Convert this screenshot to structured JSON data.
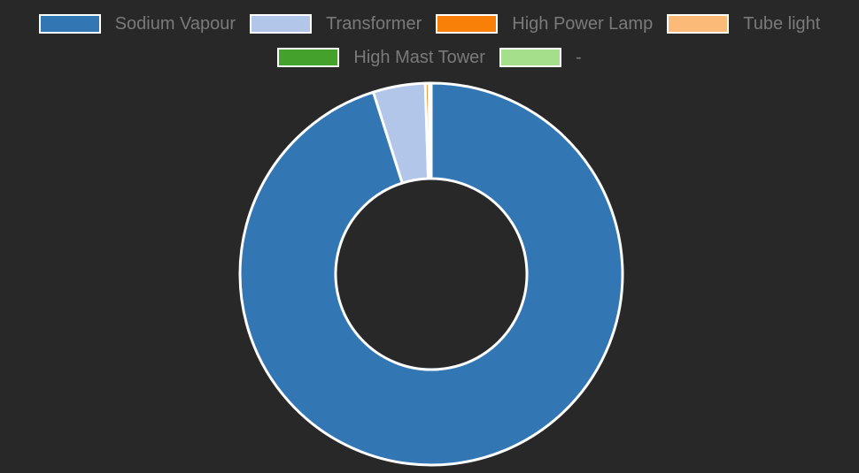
{
  "chart_data": {
    "type": "pie",
    "title": "",
    "donut": true,
    "legend_position": "top",
    "categories": [
      "Sodium Vapour",
      "Transformer",
      "High Power Lamp",
      "Tube light",
      "High Mast Tower",
      "-"
    ],
    "values": [
      95.1,
      4.4,
      0.3,
      0.2,
      0,
      0
    ],
    "colors": [
      "#3277b4",
      "#b1c6e8",
      "#f88008",
      "#fbba78",
      "#44a12c",
      "#a6df8b"
    ],
    "slice_border_color": "#ffffff"
  }
}
